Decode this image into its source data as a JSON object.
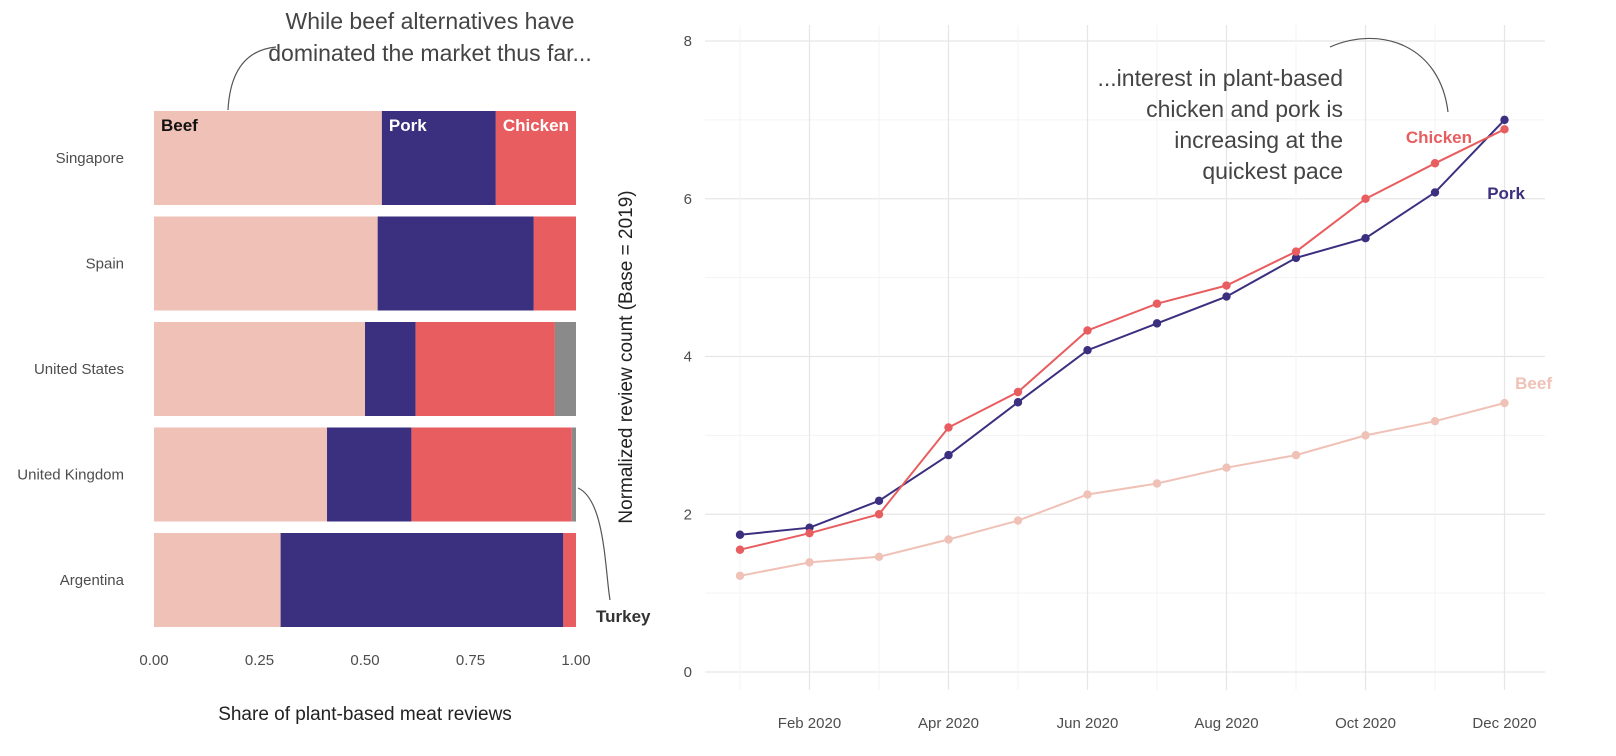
{
  "colors": {
    "Beef": "#f0c1b6",
    "Pork": "#3b2f7f",
    "Chicken": "#e85d5f",
    "Turkey": "#8a8a8a",
    "grid": "#e6e6e6"
  },
  "chart_data": [
    {
      "type": "bar",
      "stacked": true,
      "orientation": "horizontal",
      "categories": [
        "Singapore",
        "Spain",
        "United States",
        "United Kingdom",
        "Argentina"
      ],
      "series": [
        {
          "name": "Beef",
          "values": [
            0.54,
            0.53,
            0.5,
            0.41,
            0.3
          ]
        },
        {
          "name": "Pork",
          "values": [
            0.27,
            0.37,
            0.12,
            0.2,
            0.67
          ]
        },
        {
          "name": "Chicken",
          "values": [
            0.19,
            0.1,
            0.33,
            0.38,
            0.03
          ]
        },
        {
          "name": "Turkey",
          "values": [
            0.0,
            0.0,
            0.05,
            0.01,
            0.0
          ]
        }
      ],
      "xlim": [
        0,
        1
      ],
      "xticks": [
        "0.00",
        "0.25",
        "0.50",
        "0.75",
        "1.00"
      ],
      "xlabel": "Share of plant-based meat reviews",
      "annotations": [
        "While beef alternatives have",
        "dominated the market thus far...",
        "Turkey"
      ]
    },
    {
      "type": "line",
      "x": [
        "2020-01",
        "2020-02",
        "2020-03",
        "2020-04",
        "2020-05",
        "2020-06",
        "2020-07",
        "2020-08",
        "2020-09",
        "2020-10",
        "2020-11",
        "2020-12"
      ],
      "series": [
        {
          "name": "Beef",
          "values": [
            1.22,
            1.39,
            1.46,
            1.68,
            1.92,
            2.25,
            2.39,
            2.59,
            2.75,
            3.0,
            3.18,
            3.41
          ]
        },
        {
          "name": "Pork",
          "values": [
            1.74,
            1.83,
            2.17,
            2.75,
            3.42,
            4.08,
            4.42,
            4.76,
            5.25,
            5.5,
            6.08,
            7.0
          ]
        },
        {
          "name": "Chicken",
          "values": [
            1.55,
            1.76,
            2.0,
            3.1,
            3.55,
            4.33,
            4.67,
            4.9,
            5.33,
            6.0,
            6.45,
            6.88
          ]
        }
      ],
      "ylim": [
        0,
        8
      ],
      "yticks": [
        "0",
        "2",
        "4",
        "6",
        "8"
      ],
      "xticks": [
        "Feb 2020",
        "Apr 2020",
        "Jun 2020",
        "Aug 2020",
        "Oct 2020",
        "Dec 2020"
      ],
      "ylabel": "Normalized review count (Base = 2019)",
      "annotations": [
        "...interest in plant-based",
        "chicken and pork is",
        "increasing at the",
        "quickest pace"
      ]
    }
  ]
}
